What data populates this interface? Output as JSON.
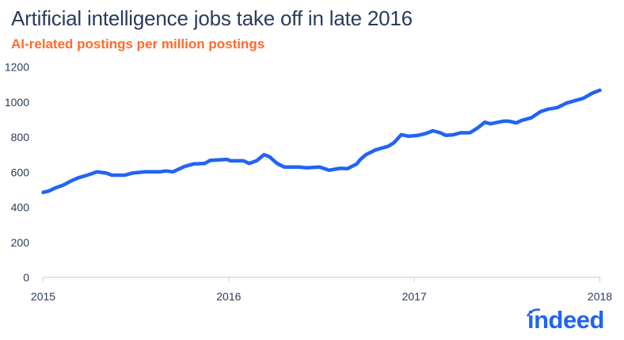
{
  "chart_data": {
    "type": "line",
    "title": "Artificial intelligence jobs take off in late 2016",
    "subtitle": "AI-related postings per million postings",
    "xlabel": "",
    "ylabel": "",
    "xlim": [
      2015,
      2018
    ],
    "ylim": [
      0,
      1200
    ],
    "x_ticks": [
      "2015",
      "2016",
      "2017",
      "2018"
    ],
    "y_ticks": [
      "0",
      "200",
      "400",
      "600",
      "800",
      "1000",
      "1200"
    ],
    "grid": false,
    "line_color": "#2164f3",
    "x": [
      2015.0,
      2015.03,
      2015.07,
      2015.11,
      2015.15,
      2015.19,
      2015.25,
      2015.29,
      2015.34,
      2015.37,
      2015.44,
      2015.48,
      2015.55,
      2015.63,
      2015.66,
      2015.7,
      2015.76,
      2015.81,
      2015.87,
      2015.9,
      2015.99,
      2016.01,
      2016.08,
      2016.11,
      2016.15,
      2016.19,
      2016.22,
      2016.26,
      2016.3,
      2016.38,
      2016.42,
      2016.49,
      2016.54,
      2016.6,
      2016.64,
      2016.69,
      2016.71,
      2016.74,
      2016.79,
      2016.86,
      2016.89,
      2016.93,
      2016.97,
      2017.02,
      2017.06,
      2017.1,
      2017.14,
      2017.17,
      2017.21,
      2017.25,
      2017.3,
      2017.34,
      2017.38,
      2017.41,
      2017.48,
      2017.51,
      2017.55,
      2017.58,
      2017.63,
      2017.68,
      2017.72,
      2017.77,
      2017.82,
      2017.91,
      2017.96,
      2018.0
    ],
    "y": [
      485,
      492,
      512,
      527,
      550,
      568,
      587,
      602,
      595,
      583,
      583,
      595,
      602,
      602,
      607,
      602,
      632,
      647,
      650,
      667,
      673,
      665,
      665,
      650,
      665,
      700,
      688,
      650,
      629,
      629,
      625,
      629,
      611,
      622,
      620,
      647,
      673,
      700,
      727,
      748,
      768,
      814,
      805,
      810,
      820,
      836,
      825,
      810,
      813,
      825,
      825,
      851,
      885,
      876,
      891,
      891,
      881,
      896,
      910,
      945,
      959,
      968,
      994,
      1021,
      1051,
      1067
    ]
  },
  "logo": {
    "text": "indeed",
    "color": "#2164f3"
  }
}
